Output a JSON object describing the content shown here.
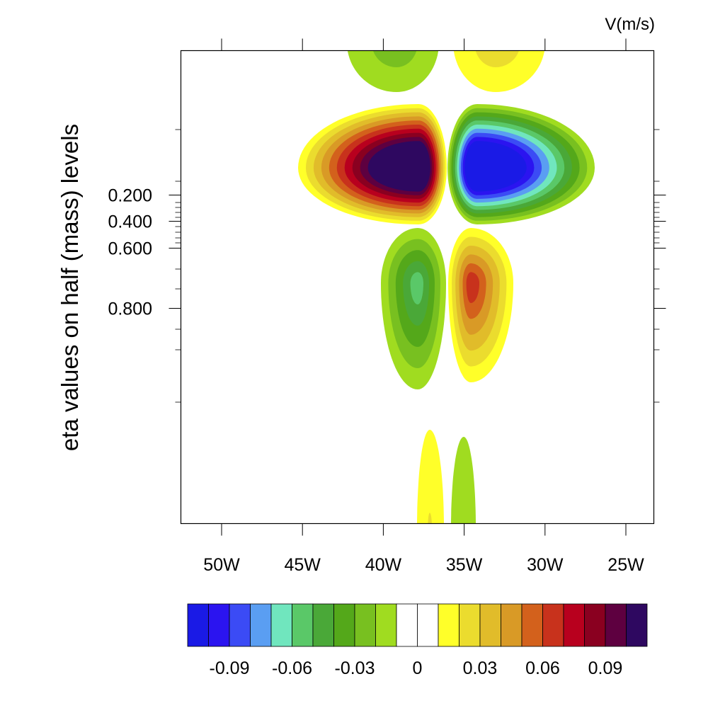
{
  "chart_data": {
    "type": "contour",
    "units_label": "V(m/s)",
    "ylabel": "eta values on half (mass) levels",
    "x_axis": {
      "ticks": [
        {
          "lon": -50,
          "label": "50W"
        },
        {
          "lon": -45,
          "label": "45W"
        },
        {
          "lon": -40,
          "label": "40W"
        },
        {
          "lon": -35,
          "label": "35W"
        },
        {
          "lon": -30,
          "label": "30W"
        },
        {
          "lon": -25,
          "label": "25W"
        }
      ],
      "xlim": [
        -52.5,
        -23.2
      ]
    },
    "y_axis": {
      "labeled_ticks": [
        {
          "eta": 0.2,
          "label": "0.200"
        },
        {
          "eta": 0.4,
          "label": "0.400"
        },
        {
          "eta": 0.6,
          "label": "0.600"
        },
        {
          "eta": 0.8,
          "label": "0.800"
        }
      ]
    },
    "colorbar": {
      "colors": [
        "#1a1ae6",
        "#2b14f0",
        "#3b4bf5",
        "#5a9ef2",
        "#70e6be",
        "#5ac868",
        "#4aa838",
        "#54a81a",
        "#78c020",
        "#a0dc20",
        "#ffffff",
        "#ffffff",
        "#ffff29",
        "#ebdc2e",
        "#e1bc2a",
        "#d99a26",
        "#d3611c",
        "#c8321c",
        "#b8001e",
        "#8a0020",
        "#5e0040",
        "#2e0860"
      ],
      "labels": [
        {
          "value": -0.09,
          "text": "-0.09"
        },
        {
          "value": -0.06,
          "text": "-0.06"
        },
        {
          "value": -0.03,
          "text": "-0.03"
        },
        {
          "value": 0,
          "text": "0"
        },
        {
          "value": 0.03,
          "text": "0.03"
        },
        {
          "value": 0.06,
          "text": "0.06"
        },
        {
          "value": 0.09,
          "text": "0.09"
        }
      ]
    },
    "features": [
      {
        "name": "upper-positive-lobe",
        "lon": -37.3,
        "eta": 0.1,
        "peak": 0.11
      },
      {
        "name": "upper-negative-lobe",
        "lon": -34.6,
        "eta": 0.1,
        "peak": -0.11
      },
      {
        "name": "mid-negative-lobe",
        "lon": -37.1,
        "eta": 0.76,
        "peak": -0.055
      },
      {
        "name": "mid-positive-lobe",
        "lon": -34.9,
        "eta": 0.76,
        "peak": 0.06
      },
      {
        "name": "top-negative-lobe",
        "lon": -37.3,
        "eta": -0.27,
        "peak": -0.025
      },
      {
        "name": "top-positive-lobe",
        "lon": -34.3,
        "eta": -0.27,
        "peak": 0.022
      },
      {
        "name": "bottom-positive-lobe",
        "lon": -36.8,
        "eta": 1.55,
        "peak": 0.023
      },
      {
        "name": "bottom-negative-lobe",
        "lon": -35.2,
        "eta": 1.55,
        "peak": -0.012
      }
    ]
  }
}
